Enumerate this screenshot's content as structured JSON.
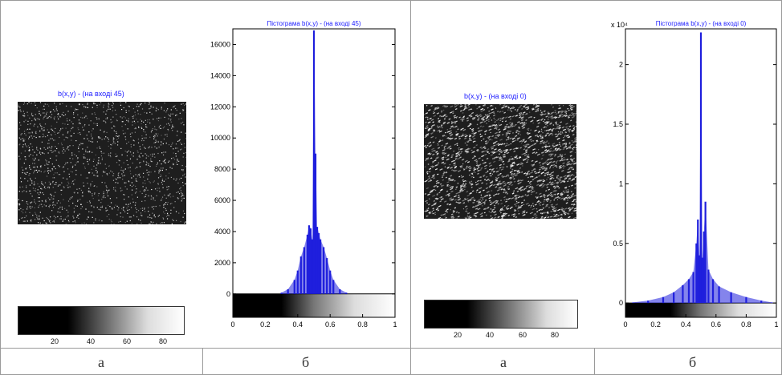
{
  "panels": [
    {
      "image_title": "b(x,y) -  (на вході 45)",
      "colorbar_ticks": [
        "20",
        "40",
        "60",
        "80"
      ],
      "caption": "а"
    },
    {
      "image_title": "b(x,y) -  (на вході 0)",
      "colorbar_ticks": [
        "20",
        "40",
        "60",
        "80"
      ],
      "caption": "а"
    }
  ],
  "captions_b": [
    "б",
    "б"
  ],
  "chart_data": [
    {
      "type": "bar",
      "title": "Пістограма b(x,y) -  (на вході 45)",
      "xlabel": "",
      "ylabel": "",
      "xlim": [
        0,
        1
      ],
      "ylim": [
        -1500,
        17000
      ],
      "yticks": [
        "0",
        "2000",
        "4000",
        "6000",
        "8000",
        "10000",
        "12000",
        "14000",
        "16000"
      ],
      "xticks": [
        "0",
        "0.2",
        "0.4",
        "0.6",
        "0.8",
        "1"
      ],
      "exponent_label": "",
      "series_color": "#1f1fdd",
      "x": [
        0.3,
        0.34,
        0.38,
        0.4,
        0.42,
        0.44,
        0.46,
        0.47,
        0.48,
        0.49,
        0.5,
        0.51,
        0.52,
        0.53,
        0.54,
        0.56,
        0.58,
        0.6,
        0.62,
        0.66,
        0.7
      ],
      "values": [
        80,
        300,
        900,
        1500,
        2400,
        3000,
        3800,
        4400,
        4200,
        3500,
        16900,
        9000,
        4300,
        3900,
        3500,
        3000,
        2300,
        1500,
        900,
        300,
        80
      ]
    },
    {
      "type": "bar",
      "title": "Пістограма b(x,y) -  (на вході 0)",
      "xlabel": "",
      "ylabel": "",
      "xlim": [
        0,
        1
      ],
      "ylim": [
        -0.12,
        2.3
      ],
      "yticks": [
        "0",
        "0.5",
        "1",
        "1.5",
        "2"
      ],
      "xticks": [
        "0",
        "0.2",
        "0.4",
        "0.6",
        "0.8",
        "1"
      ],
      "exponent_label": "x 10⁴",
      "series_color": "#1f1fdd",
      "x": [
        0.05,
        0.15,
        0.25,
        0.32,
        0.38,
        0.42,
        0.45,
        0.47,
        0.48,
        0.49,
        0.5,
        0.51,
        0.52,
        0.53,
        0.55,
        0.58,
        0.62,
        0.7,
        0.8,
        0.9,
        0.97
      ],
      "values": [
        0.005,
        0.02,
        0.05,
        0.09,
        0.15,
        0.2,
        0.26,
        0.5,
        0.7,
        0.4,
        2.27,
        0.38,
        0.6,
        0.85,
        0.28,
        0.2,
        0.14,
        0.09,
        0.05,
        0.02,
        0.005
      ]
    }
  ]
}
